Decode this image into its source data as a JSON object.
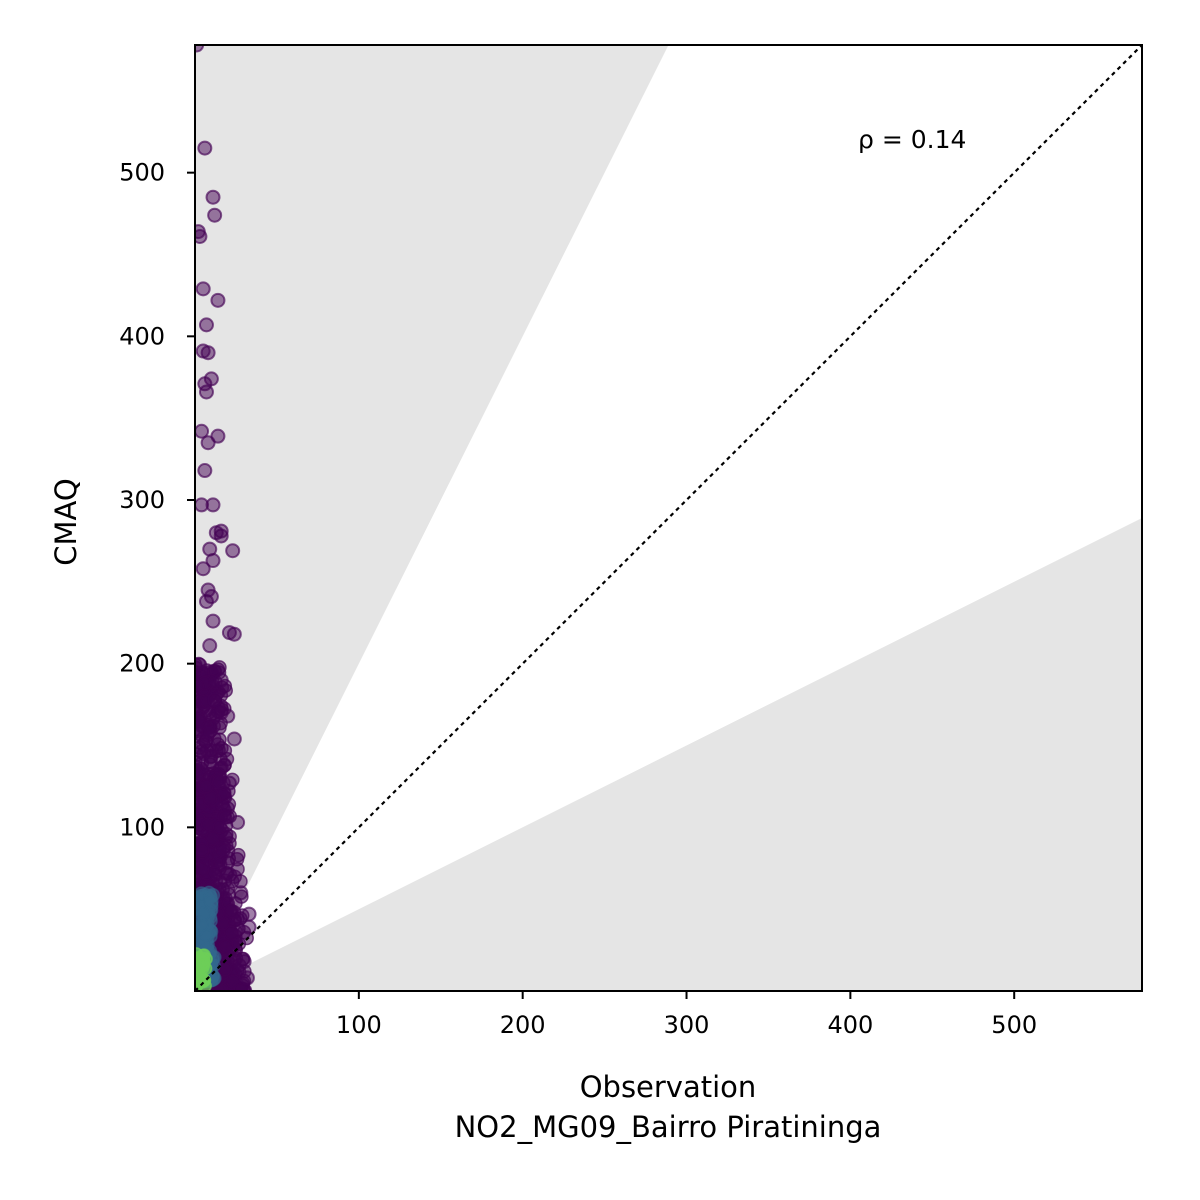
{
  "chart_data": {
    "type": "scatter",
    "xlabel": "Observation",
    "xlabel_line2": "NO2_MG09_Bairro Piratininga",
    "ylabel": "CMAQ",
    "xlim": [
      0,
      578
    ],
    "ylim": [
      0,
      578
    ],
    "xticks": [
      "100",
      "200",
      "300",
      "400",
      "500"
    ],
    "yticks": [
      "100",
      "200",
      "300",
      "400",
      "500"
    ],
    "annotation": "ρ = 0.14",
    "reference_line": {
      "style": "dotted",
      "slope": 1
    },
    "shaded_band": {
      "upper_slope": 2.0,
      "lower_slope": 0.5,
      "color": "#e5e5e5"
    },
    "colormap": "viridis",
    "colors": {
      "low_density": "#440154",
      "mid_density": "#31688e",
      "high_density": "#6ece58"
    },
    "outlier_points": [
      [
        1,
        578
      ],
      [
        6,
        515
      ],
      [
        11,
        485
      ],
      [
        12,
        474
      ],
      [
        2,
        464
      ],
      [
        3,
        461
      ],
      [
        5,
        429
      ],
      [
        14,
        422
      ],
      [
        7,
        407
      ],
      [
        5,
        391
      ],
      [
        8,
        390
      ],
      [
        10,
        374
      ],
      [
        6,
        371
      ],
      [
        7,
        366
      ],
      [
        4,
        342
      ],
      [
        14,
        339
      ],
      [
        8,
        335
      ],
      [
        6,
        318
      ],
      [
        11,
        297
      ],
      [
        4,
        297
      ],
      [
        23,
        269
      ],
      [
        16,
        281
      ],
      [
        13,
        280
      ],
      [
        16,
        278
      ],
      [
        9,
        270
      ],
      [
        11,
        263
      ],
      [
        5,
        258
      ],
      [
        8,
        245
      ],
      [
        10,
        241
      ],
      [
        7,
        238
      ],
      [
        11,
        226
      ],
      [
        21,
        219
      ],
      [
        24,
        218
      ],
      [
        9,
        211
      ],
      [
        16,
        190
      ],
      [
        12,
        178
      ],
      [
        24,
        154
      ],
      [
        20,
        168
      ],
      [
        16,
        170
      ],
      [
        26,
        103
      ],
      [
        21,
        127
      ],
      [
        33,
        47
      ],
      [
        33,
        39
      ],
      [
        32,
        8
      ],
      [
        30,
        18
      ],
      [
        28,
        60
      ]
    ]
  }
}
